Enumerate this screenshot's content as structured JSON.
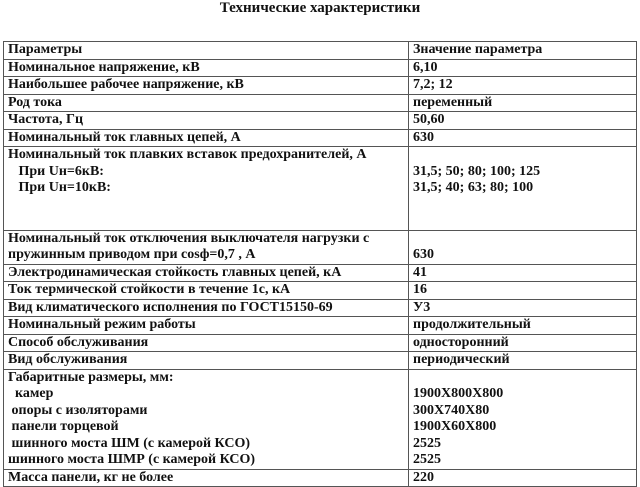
{
  "title": "Технические характеристики",
  "table": {
    "rows": [
      {
        "left": [
          "Параметры"
        ],
        "right": [
          "Значение параметра"
        ]
      },
      {
        "left": [
          "Номинальное напряжение, кВ"
        ],
        "right": [
          "6,10"
        ]
      },
      {
        "left": [
          "Наибольшее рабочее напряжение, кВ"
        ],
        "right": [
          "7,2; 12"
        ]
      },
      {
        "left": [
          "Род тока"
        ],
        "right": [
          "переменный"
        ]
      },
      {
        "left": [
          "Частота, Гц"
        ],
        "right": [
          "50,60"
        ]
      },
      {
        "left": [
          "Номинальный ток главных цепей, А"
        ],
        "right": [
          "630"
        ]
      },
      {
        "left": [
          "Номинальный ток плавких вставок предохранителей, А",
          "   При Uн=6кВ:",
          "   При Uн=10кВ:",
          "",
          ""
        ],
        "right": [
          "",
          "31,5; 50; 80; 100; 125",
          "31,5; 40; 63; 80; 100",
          "",
          ""
        ]
      },
      {
        "left": [
          "Номинальный ток отключения выключателя нагрузки с",
          "пружинным приводом при cosф=0,7 , А"
        ],
        "right": [
          "",
          "630"
        ]
      },
      {
        "left": [
          "Электродинамическая стойкость главных цепей, кА"
        ],
        "right": [
          "41"
        ]
      },
      {
        "left": [
          "Ток термической стойкости в течение 1с, кА"
        ],
        "right": [
          "16"
        ]
      },
      {
        "left": [
          "Вид климатического исполнения по ГОСТ15150-69"
        ],
        "right": [
          "У3"
        ]
      },
      {
        "left": [
          "Номинальный режим работы"
        ],
        "right": [
          "продолжительный"
        ]
      },
      {
        "left": [
          "Способ обслуживания"
        ],
        "right": [
          "односторонний"
        ]
      },
      {
        "left": [
          "Вид обслуживания"
        ],
        "right": [
          "периодический"
        ]
      },
      {
        "left": [
          "Габаритные размеры, мм:",
          "  камер",
          " опоры с изоляторами",
          " панели торцевой",
          " шинного моста ШМ (с камерой КСО)",
          "шинного моста ШМР (с камерой КСО)"
        ],
        "right": [
          "",
          "1900Х800Х800",
          "300Х740Х80",
          "1900Х60Х800",
          "2525",
          "2525"
        ]
      },
      {
        "left": [
          "Масса панели, кг не более"
        ],
        "right": [
          "220"
        ]
      }
    ]
  }
}
